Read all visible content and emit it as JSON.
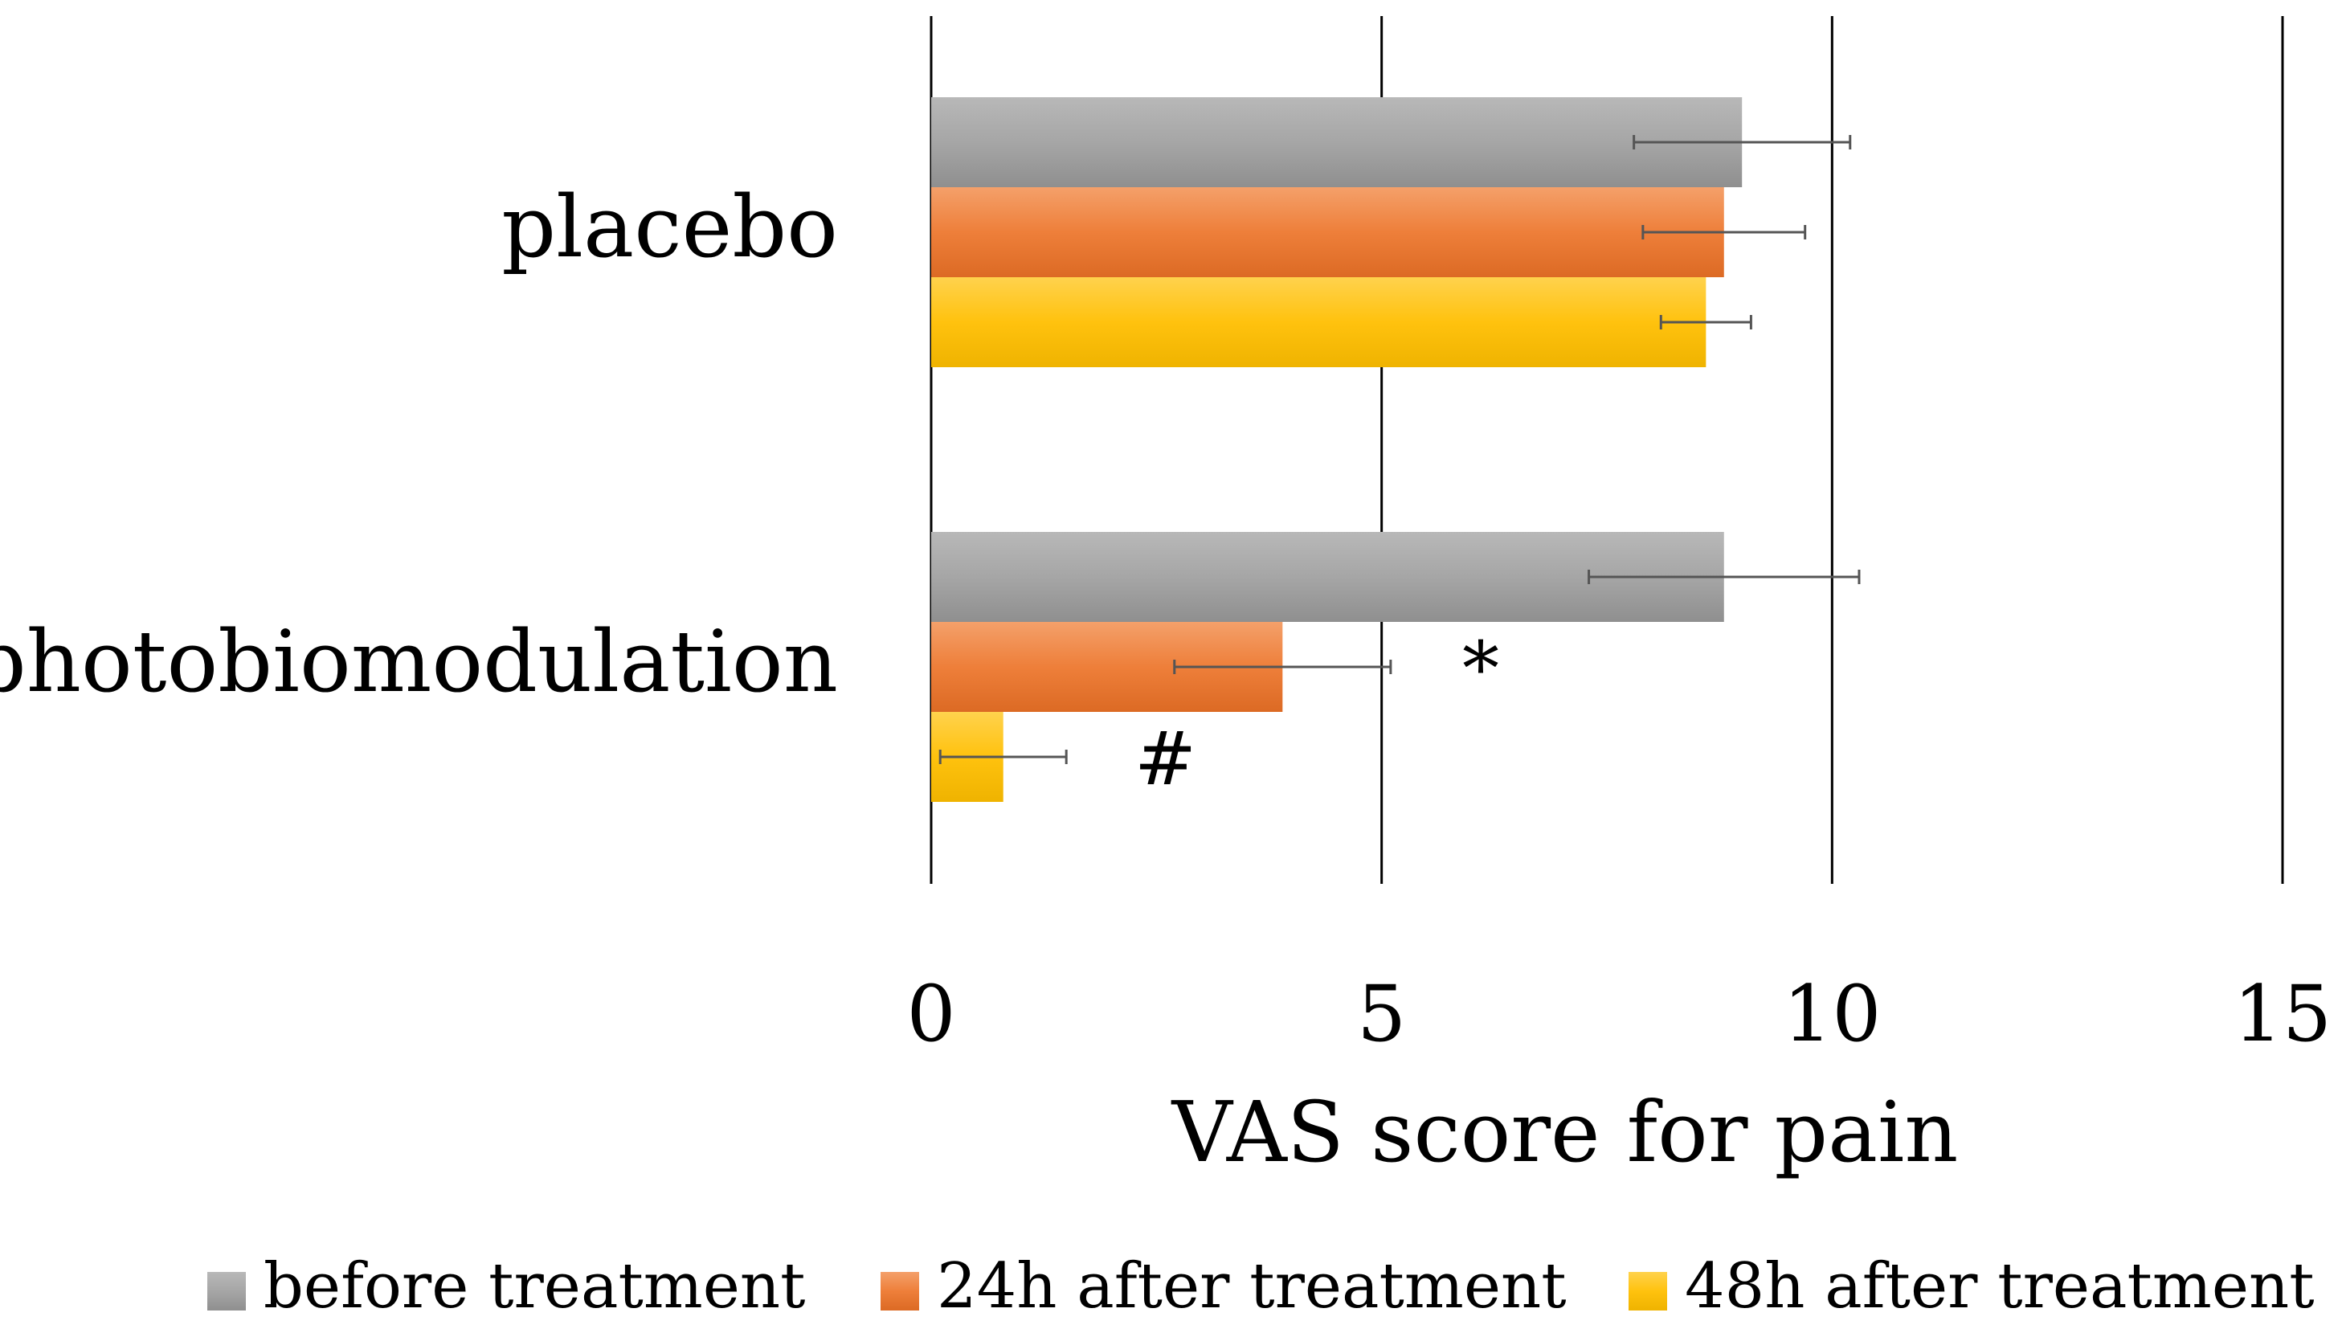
{
  "chart_data": {
    "type": "bar",
    "orientation": "horizontal",
    "title": "",
    "xlabel": "VAS score for pain",
    "ylabel": "",
    "xlim": [
      0,
      15
    ],
    "xticks": [
      0,
      5,
      10,
      15
    ],
    "grid": true,
    "legend_position": "bottom",
    "categories": [
      "placebo",
      "photobiomodulation"
    ],
    "series": [
      {
        "name": "before treatment",
        "color": "#A0A0A0",
        "values": [
          9.0,
          8.8
        ],
        "error": [
          1.2,
          1.5
        ]
      },
      {
        "name": "24h after treatment",
        "color": "#ED7D31",
        "values": [
          8.8,
          3.9
        ],
        "error": [
          0.9,
          1.2
        ]
      },
      {
        "name": "48h after treatment",
        "color": "#FFC000",
        "values": [
          8.6,
          0.8
        ],
        "error": [
          0.5,
          0.7
        ]
      }
    ],
    "annotations": [
      {
        "text": "*",
        "category": "photobiomodulation",
        "series": "24h after treatment",
        "x": 6.1
      },
      {
        "text": "#",
        "category": "photobiomodulation",
        "series": "48h after treatment",
        "x": 2.6
      }
    ]
  }
}
